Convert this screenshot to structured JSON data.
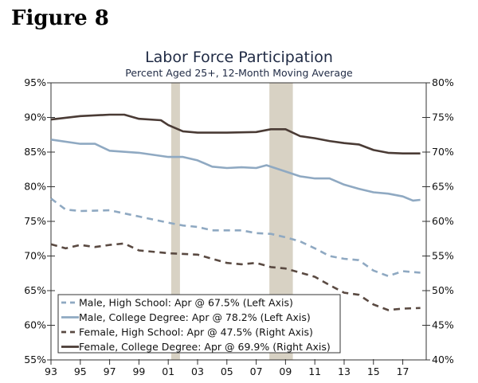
{
  "figure_label": "Figure 8",
  "chart_data": {
    "type": "line",
    "title": "Labor Force Participation",
    "subtitle": "Percent Aged 25+, 12-Month Moving Average",
    "xlim": [
      1993,
      2018.6
    ],
    "x_ticks": [
      1993,
      1995,
      1997,
      1999,
      2001,
      2003,
      2005,
      2007,
      2009,
      2011,
      2013,
      2015,
      2017
    ],
    "x_tick_labels": [
      "93",
      "95",
      "97",
      "99",
      "01",
      "03",
      "05",
      "07",
      "09",
      "11",
      "13",
      "15",
      "17"
    ],
    "ylim_left": [
      55,
      95
    ],
    "y_ticks_left": [
      "55%",
      "60%",
      "65%",
      "70%",
      "75%",
      "80%",
      "85%",
      "90%",
      "95%"
    ],
    "ylim_right": [
      40,
      80
    ],
    "y_ticks_right": [
      "40%",
      "45%",
      "50%",
      "55%",
      "60%",
      "65%",
      "70%",
      "75%",
      "80%"
    ],
    "recessions": [
      [
        2001.2,
        2001.8
      ],
      [
        2007.9,
        2009.5
      ]
    ],
    "recession_color": "#d8d2c4",
    "legend_position": "bottom-left",
    "series": [
      {
        "name": "Male, High School: Apr @ 67.5% (Left Axis)",
        "axis": "left",
        "color": "#8fa9c2",
        "dash": true,
        "x": [
          1993,
          1994,
          1995,
          1997,
          1999,
          2001,
          2002,
          2003,
          2004,
          2006,
          2007,
          2008,
          2009,
          2010,
          2011,
          2012,
          2013,
          2014,
          2015,
          2016,
          2017,
          2018.2
        ],
        "y": [
          78.3,
          76.7,
          76.5,
          76.6,
          75.7,
          74.8,
          74.4,
          74.2,
          73.7,
          73.7,
          73.3,
          73.2,
          72.7,
          72.1,
          71.1,
          70.0,
          69.6,
          69.4,
          67.9,
          67.1,
          67.8,
          67.6
        ]
      },
      {
        "name": "Male, College Degree: Apr @ 78.2% (Left Axis)",
        "axis": "left",
        "color": "#8fa9c2",
        "dash": false,
        "x": [
          1993,
          1995,
          1996,
          1997,
          1999,
          2001,
          2002,
          2003,
          2004,
          2005,
          2006,
          2007,
          2007.7,
          2009,
          2010,
          2011,
          2012,
          2013,
          2014,
          2015,
          2016,
          2017,
          2017.7,
          2018.2
        ],
        "y": [
          86.8,
          86.2,
          86.2,
          85.2,
          84.9,
          84.3,
          84.3,
          83.8,
          82.9,
          82.7,
          82.8,
          82.7,
          83.1,
          82.2,
          81.5,
          81.2,
          81.2,
          80.3,
          79.7,
          79.2,
          79.0,
          78.6,
          78.0,
          78.1
        ]
      },
      {
        "name": "Female, High School: Apr @ 47.5% (Right Axis)",
        "axis": "right",
        "color": "#5a4a42",
        "dash": true,
        "x": [
          1993,
          1994,
          1995,
          1996,
          1997,
          1998,
          1999,
          2001,
          2003,
          2005,
          2006,
          2007,
          2008,
          2009,
          2011,
          2012,
          2013,
          2014,
          2015,
          2016,
          2017,
          2018.2
        ],
        "y": [
          56.7,
          56.1,
          56.6,
          56.3,
          56.6,
          56.8,
          55.8,
          55.4,
          55.2,
          54.0,
          53.8,
          54.0,
          53.4,
          53.2,
          52.0,
          50.8,
          49.7,
          49.4,
          48.0,
          47.2,
          47.4,
          47.5
        ]
      },
      {
        "name": "Female, College Degree: Apr @ 69.9% (Right Axis)",
        "axis": "right",
        "color": "#4a3b35",
        "dash": false,
        "x": [
          1993,
          1995,
          1997,
          1998,
          1999,
          2000.5,
          2001,
          2002,
          2003,
          2005,
          2007,
          2008,
          2009,
          2010,
          2011,
          2012,
          2013,
          2014,
          2015,
          2016,
          2017,
          2018.2
        ],
        "y": [
          74.7,
          75.2,
          75.4,
          75.4,
          74.8,
          74.6,
          73.9,
          73.0,
          72.8,
          72.8,
          72.9,
          73.3,
          73.3,
          72.3,
          72.0,
          71.6,
          71.3,
          71.1,
          70.3,
          69.9,
          69.8,
          69.8
        ]
      }
    ]
  }
}
